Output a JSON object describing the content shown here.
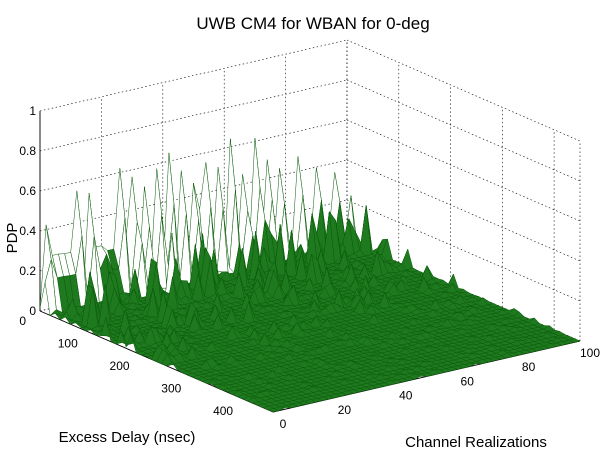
{
  "chart_data": {
    "type": "surface3d",
    "title": "UWB CM4 for WBAN for 0-deg",
    "zlabel": "PDP",
    "xlabel": "Excess Delay (nsec)",
    "ylabel": "Channel Realizations",
    "x_axis": {
      "quantity": "Excess Delay",
      "unit": "nsec",
      "range": [
        0,
        450
      ],
      "ticks": [
        0,
        100,
        200,
        300,
        400
      ]
    },
    "y_axis": {
      "quantity": "Channel Realizations",
      "range": [
        0,
        100
      ],
      "ticks": [
        0,
        20,
        40,
        60,
        80,
        100
      ]
    },
    "z_axis": {
      "quantity": "PDP",
      "range": [
        0,
        1
      ],
      "ticks": [
        0,
        0.2,
        0.4,
        0.6,
        0.8,
        1
      ],
      "tick_labels": [
        "0",
        "0.2",
        "0.4",
        "0.6",
        "0.8",
        "1"
      ]
    },
    "grid": true,
    "surface_color": "#1f7a1f",
    "surface_edge_color": "#0b5d0b",
    "highlight_color": "#ffffff",
    "peaks_near_zero_delay": [
      {
        "realization": 2,
        "value": 0.66
      },
      {
        "realization": 5,
        "value": 0.94
      },
      {
        "realization": 9,
        "value": 0.92
      },
      {
        "realization": 12,
        "value": 0.87
      },
      {
        "realization": 16,
        "value": 0.83
      },
      {
        "realization": 19,
        "value": 0.91
      },
      {
        "realization": 23,
        "value": 0.8
      },
      {
        "realization": 26,
        "value": 0.97
      },
      {
        "realization": 30,
        "value": 0.88
      },
      {
        "realization": 34,
        "value": 0.78
      },
      {
        "realization": 38,
        "value": 0.9
      },
      {
        "realization": 42,
        "value": 1.0
      },
      {
        "realization": 46,
        "value": 0.84
      },
      {
        "realization": 50,
        "value": 0.72
      },
      {
        "realization": 54,
        "value": 0.86
      },
      {
        "realization": 58,
        "value": 0.8
      },
      {
        "realization": 62,
        "value": 1.0
      },
      {
        "realization": 66,
        "value": 0.7
      },
      {
        "realization": 70,
        "value": 0.96
      },
      {
        "realization": 74,
        "value": 0.77
      },
      {
        "realization": 78,
        "value": 0.68
      },
      {
        "realization": 84,
        "value": 0.74
      },
      {
        "realization": 90,
        "value": 0.62
      },
      {
        "realization": 96,
        "value": 0.55
      }
    ]
  }
}
